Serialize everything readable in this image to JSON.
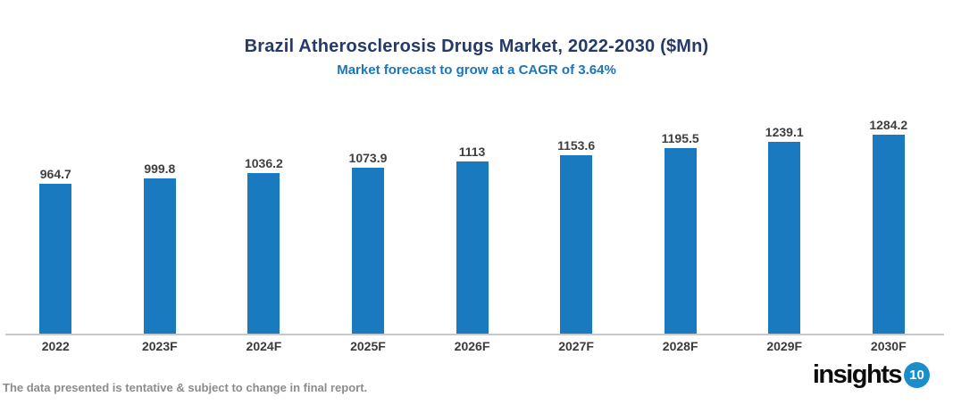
{
  "chart": {
    "title": "Brazil Atherosclerosis Drugs Market, 2022-2030 ($Mn)",
    "subtitle": "Market forecast to grow at a CAGR of 3.64%"
  },
  "chart_data": {
    "type": "bar",
    "title": "Brazil Atherosclerosis Drugs Market, 2022-2030 ($Mn)",
    "subtitle": "Market forecast to grow at a CAGR of 3.64%",
    "categories": [
      "2022",
      "2023F",
      "2024F",
      "2025F",
      "2026F",
      "2027F",
      "2028F",
      "2029F",
      "2030F"
    ],
    "values": [
      964.7,
      999.8,
      1036.2,
      1073.9,
      1113,
      1153.6,
      1195.5,
      1239.1,
      1284.2
    ],
    "data_labels": [
      "964.7",
      "999.8",
      "1036.2",
      "1073.9",
      "1113",
      "1153.6",
      "1195.5",
      "1239.1",
      "1284.2"
    ],
    "xlabel": "",
    "ylabel": "",
    "ylim": [
      0,
      1350
    ],
    "grid": false,
    "legend": false,
    "y_axis_visible": false,
    "data_labels_position": "above-bar"
  },
  "colors": {
    "bar": "#1a7abf",
    "title": "#243a68",
    "subtitle": "#1b75bc",
    "value_label": "#3f3f3f",
    "x_label": "#3a3a3a",
    "axis_line": "#c9c9c9",
    "footer_text": "#8c8c8c",
    "logo_circle": "#1b8dc9"
  },
  "footer": {
    "note": "The data presented is tentative & subject to change in final report."
  },
  "logo": {
    "word": "insights",
    "number": "10"
  }
}
